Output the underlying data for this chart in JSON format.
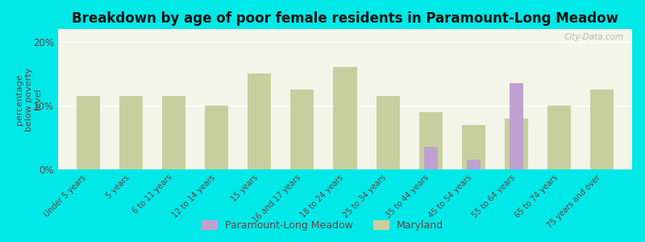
{
  "title": "Breakdown by age of poor female residents in Paramount-Long Meadow",
  "categories": [
    "Under 5 years",
    "5 years",
    "6 to 11 years",
    "12 to 14 years",
    "15 years",
    "16 and 17 years",
    "18 to 24 years",
    "25 to 34 years",
    "35 to 44 years",
    "45 to 54 years",
    "55 to 64 years",
    "65 to 74 years",
    "75 years and over"
  ],
  "maryland_values": [
    11.5,
    11.5,
    11.5,
    10.0,
    15.0,
    12.5,
    16.0,
    11.5,
    9.0,
    7.0,
    8.0,
    10.0,
    12.5
  ],
  "paramount_values": [
    0,
    0,
    0,
    0,
    0,
    0,
    0,
    0,
    3.5,
    1.5,
    13.5,
    0,
    0
  ],
  "maryland_color": "#c8cf9e",
  "paramount_color": "#c0a0d0",
  "background_color": "#00e8e8",
  "plot_bg_color": "#f2f5e8",
  "ylabel": "percentage\nbelow poverty\nlevel",
  "ylim": [
    0,
    22
  ],
  "yticks": [
    0,
    10,
    20
  ],
  "ytick_labels": [
    "0%",
    "10%",
    "20%"
  ],
  "title_fontsize": 12,
  "bar_width": 0.55,
  "legend_paramount": "Paramount-Long Meadow",
  "legend_maryland": "Maryland",
  "watermark": "City-Data.com"
}
